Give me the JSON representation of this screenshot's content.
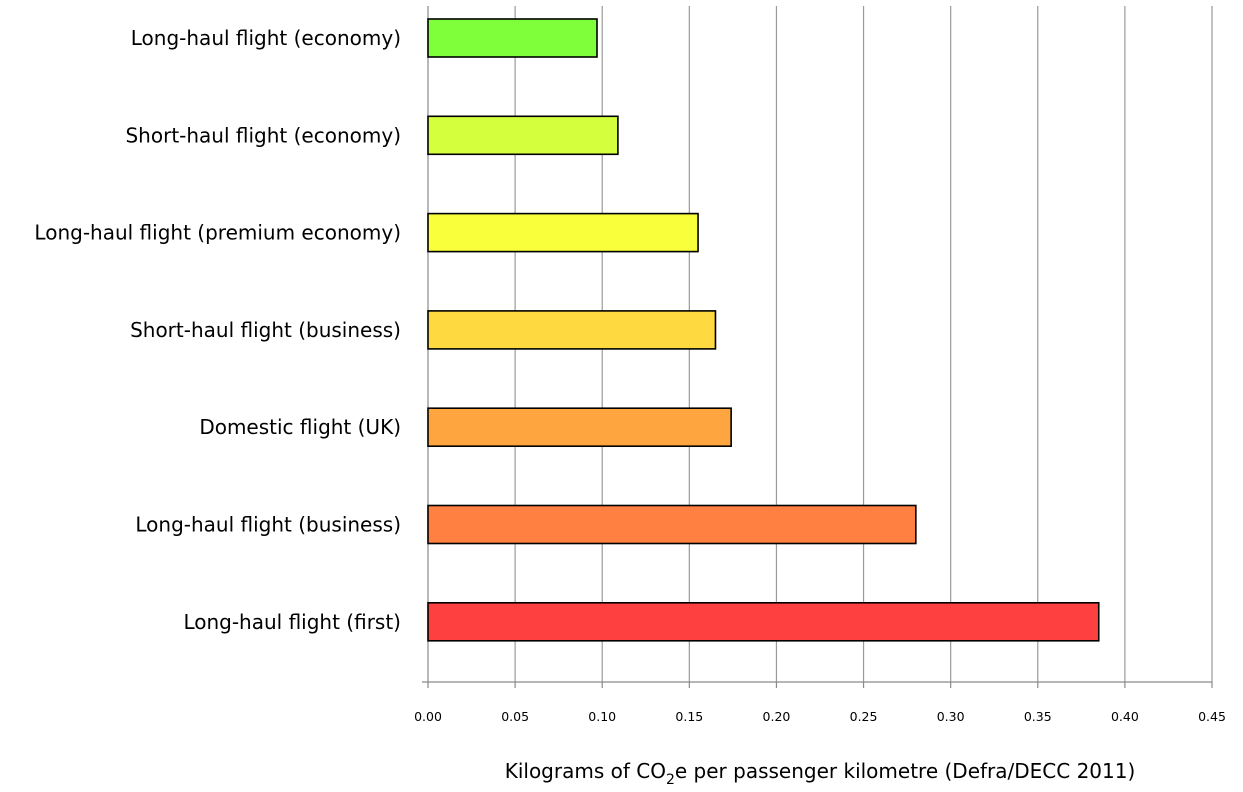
{
  "chart_data": {
    "type": "bar",
    "orientation": "horizontal",
    "categories": [
      "Long-haul flight (economy)",
      "Short-haul flight (economy)",
      "Long-haul flight (premium economy)",
      "Short-haul flight (business)",
      "Domestic flight (UK)",
      "Long-haul flight (business)",
      "Long-haul flight (first)"
    ],
    "values": [
      0.097,
      0.109,
      0.155,
      0.165,
      0.174,
      0.28,
      0.385
    ],
    "colors": [
      "#7FFF3A",
      "#D4FF3C",
      "#FAFF3C",
      "#FFD940",
      "#FFA540",
      "#FF8040",
      "#FF4040"
    ],
    "xlim": [
      0,
      0.45
    ],
    "xticks": [
      "0.00",
      "0.05",
      "0.10",
      "0.15",
      "0.20",
      "0.25",
      "0.30",
      "0.35",
      "0.40",
      "0.45"
    ],
    "xlabel": {
      "prefix": "Kilograms of CO",
      "subscript": "2",
      "suffix": "e per passenger kilometre (Defra/DECC 2011)"
    },
    "grid": "vertical",
    "legend": "none"
  }
}
